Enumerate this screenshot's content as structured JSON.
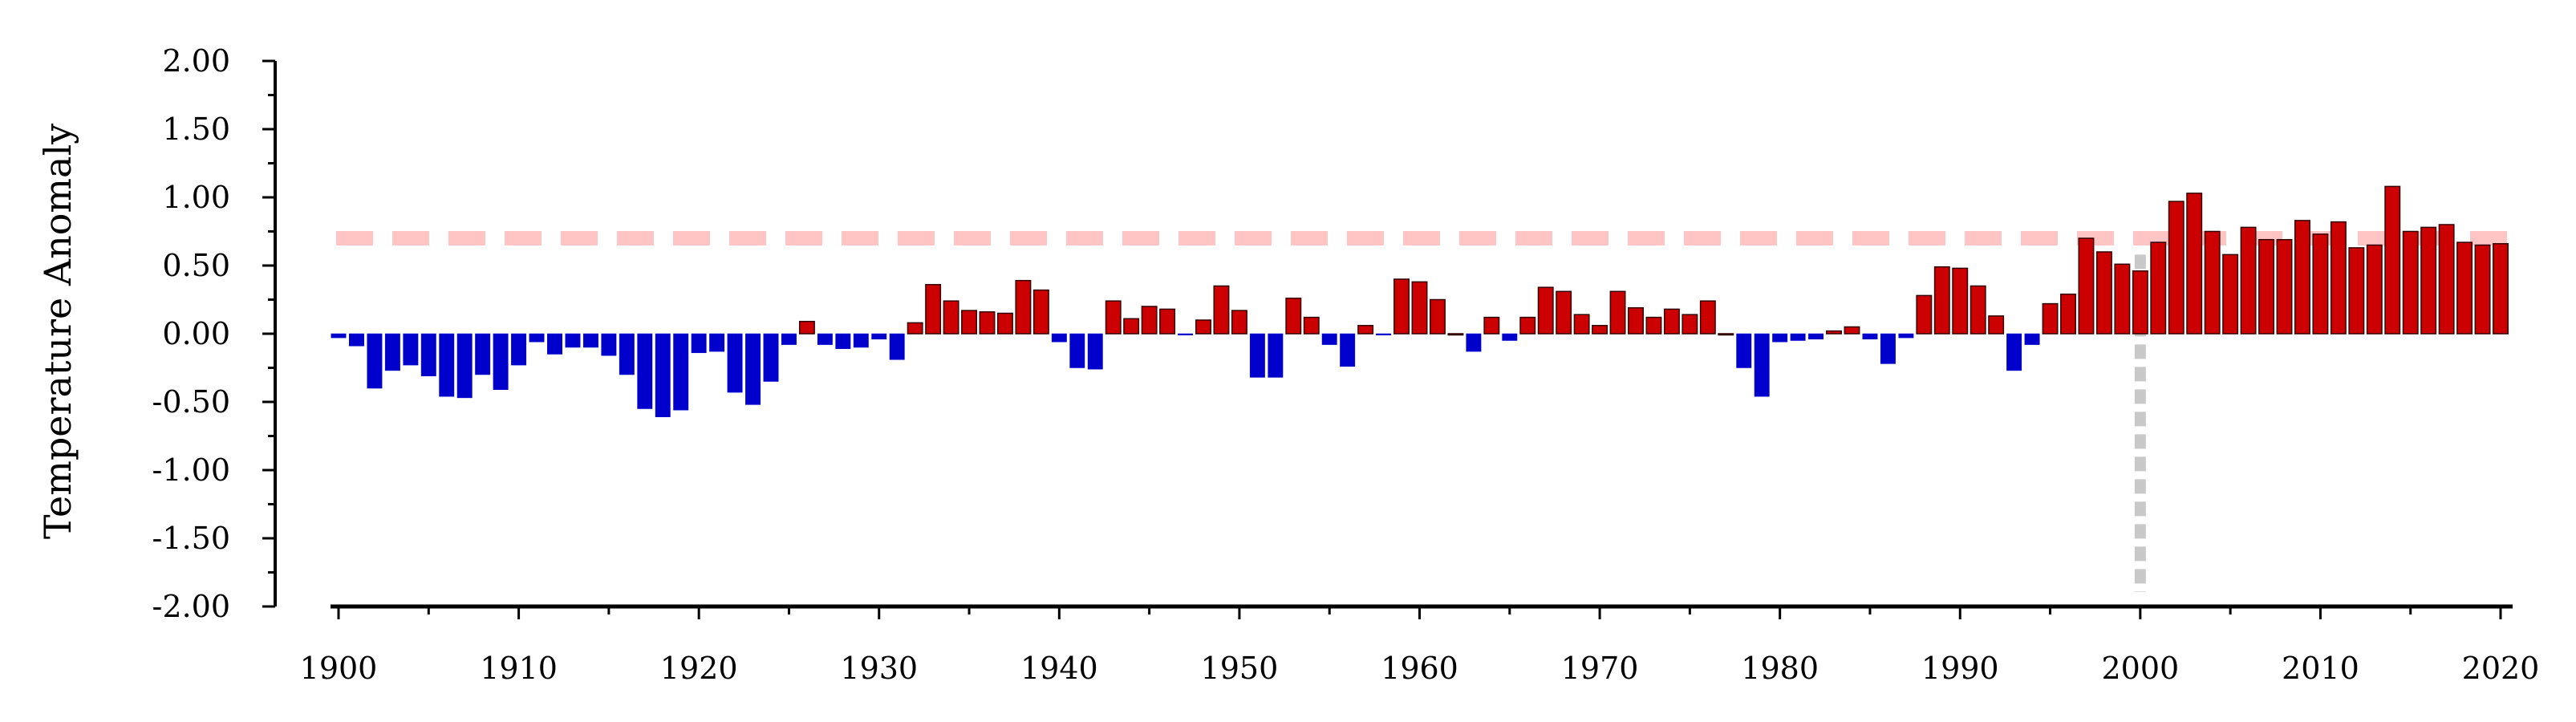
{
  "chart_data": {
    "type": "bar",
    "ylabel": "Temperature Anomaly",
    "xlabel": "",
    "ylim": [
      -2.0,
      2.0
    ],
    "xlim": [
      1900,
      2020
    ],
    "y_ticks": [
      "2.00",
      "1.50",
      "1.00",
      "0.50",
      "0.00",
      "-0.50",
      "-1.00",
      "-1.50",
      "-2.00"
    ],
    "x_ticks": [
      "1900",
      "1910",
      "1920",
      "1930",
      "1940",
      "1950",
      "1960",
      "1970",
      "1980",
      "1990",
      "2000",
      "2010",
      "2020"
    ],
    "colors": {
      "positive": "#cc0000",
      "negative": "#0000cc",
      "reference_line": "#ffc4c4",
      "marker_line": "#c8c8c8"
    },
    "reference_line_y": 0.7,
    "marker_year": 2000,
    "grid": false,
    "x": [
      1900,
      1901,
      1902,
      1903,
      1904,
      1905,
      1906,
      1907,
      1908,
      1909,
      1910,
      1911,
      1912,
      1913,
      1914,
      1915,
      1916,
      1917,
      1918,
      1919,
      1920,
      1921,
      1922,
      1923,
      1924,
      1925,
      1926,
      1927,
      1928,
      1929,
      1930,
      1931,
      1932,
      1933,
      1934,
      1935,
      1936,
      1937,
      1938,
      1939,
      1940,
      1941,
      1942,
      1943,
      1944,
      1945,
      1946,
      1947,
      1948,
      1949,
      1950,
      1951,
      1952,
      1953,
      1954,
      1955,
      1956,
      1957,
      1958,
      1959,
      1960,
      1961,
      1962,
      1963,
      1964,
      1965,
      1966,
      1967,
      1968,
      1969,
      1970,
      1971,
      1972,
      1973,
      1974,
      1975,
      1976,
      1977,
      1978,
      1979,
      1980,
      1981,
      1982,
      1983,
      1984,
      1985,
      1986,
      1987,
      1988,
      1989,
      1990,
      1991,
      1992,
      1993,
      1994,
      1995,
      1996,
      1997,
      1998,
      1999,
      2000,
      2001,
      2002,
      2003,
      2004,
      2005,
      2006,
      2007,
      2008,
      2009,
      2010,
      2011,
      2012,
      2013,
      2014,
      2015,
      2016,
      2017,
      2018,
      2019,
      2020
    ],
    "values": [
      -0.03,
      -0.09,
      -0.4,
      -0.27,
      -0.23,
      -0.31,
      -0.46,
      -0.47,
      -0.3,
      -0.41,
      -0.23,
      -0.06,
      -0.15,
      -0.1,
      -0.1,
      -0.16,
      -0.3,
      -0.55,
      -0.61,
      -0.56,
      -0.14,
      -0.13,
      -0.43,
      -0.52,
      -0.35,
      -0.08,
      0.09,
      -0.08,
      -0.11,
      -0.1,
      -0.04,
      -0.19,
      0.08,
      0.36,
      0.24,
      0.17,
      0.16,
      0.15,
      0.39,
      0.32,
      -0.06,
      -0.25,
      -0.26,
      0.24,
      0.11,
      0.2,
      0.18,
      -0.01,
      0.1,
      0.35,
      0.17,
      -0.32,
      -0.32,
      0.26,
      0.12,
      -0.08,
      -0.24,
      0.06,
      -0.01,
      0.4,
      0.38,
      0.25,
      0.0,
      -0.13,
      0.12,
      -0.05,
      0.12,
      0.34,
      0.31,
      0.14,
      0.06,
      0.31,
      0.19,
      0.12,
      0.18,
      0.14,
      0.24,
      0.0,
      -0.25,
      -0.46,
      -0.06,
      -0.05,
      -0.04,
      0.02,
      0.05,
      -0.04,
      -0.22,
      -0.03,
      0.28,
      0.49,
      0.48,
      0.35,
      0.13,
      -0.27,
      -0.08,
      0.22,
      0.29,
      0.7,
      0.6,
      0.51,
      0.46,
      0.67,
      0.97,
      1.03,
      0.75,
      0.58,
      0.78,
      0.69,
      0.69,
      0.83,
      0.73,
      0.82,
      0.63,
      0.65,
      1.08,
      0.75,
      0.78,
      0.8,
      0.67,
      0.65,
      0.66
    ]
  }
}
